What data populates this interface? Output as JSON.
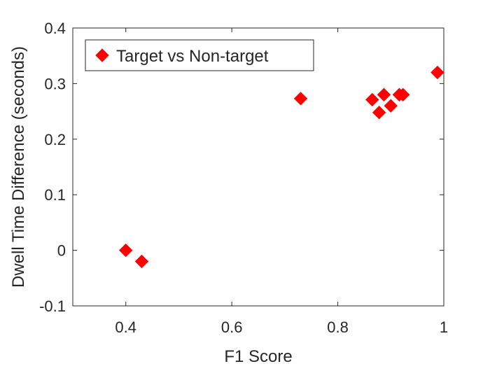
{
  "chart_data": {
    "type": "scatter",
    "title": "",
    "xlabel": "F1 Score",
    "ylabel": "Dwell Time Difference (seconds)",
    "xlim": [
      0.3,
      1.0
    ],
    "ylim": [
      -0.1,
      0.4
    ],
    "x_ticks": [
      0.4,
      0.6,
      0.8,
      1.0
    ],
    "x_tick_labels": [
      "0.4",
      "0.6",
      "0.8",
      "1"
    ],
    "y_ticks": [
      -0.1,
      0,
      0.1,
      0.2,
      0.3,
      0.4
    ],
    "y_tick_labels": [
      "-0.1",
      "0",
      "0.1",
      "0.2",
      "0.3",
      "0.4"
    ],
    "grid": false,
    "legend_position": "top-left",
    "series": [
      {
        "name": "Target vs Non-target",
        "marker": "diamond",
        "color": "#ff0000",
        "points": [
          {
            "x": 0.4,
            "y": 0.0
          },
          {
            "x": 0.43,
            "y": -0.02
          },
          {
            "x": 0.73,
            "y": 0.273
          },
          {
            "x": 0.865,
            "y": 0.271
          },
          {
            "x": 0.878,
            "y": 0.248
          },
          {
            "x": 0.887,
            "y": 0.28
          },
          {
            "x": 0.9,
            "y": 0.26
          },
          {
            "x": 0.916,
            "y": 0.28
          },
          {
            "x": 0.923,
            "y": 0.28
          },
          {
            "x": 0.988,
            "y": 0.32
          }
        ]
      }
    ]
  }
}
